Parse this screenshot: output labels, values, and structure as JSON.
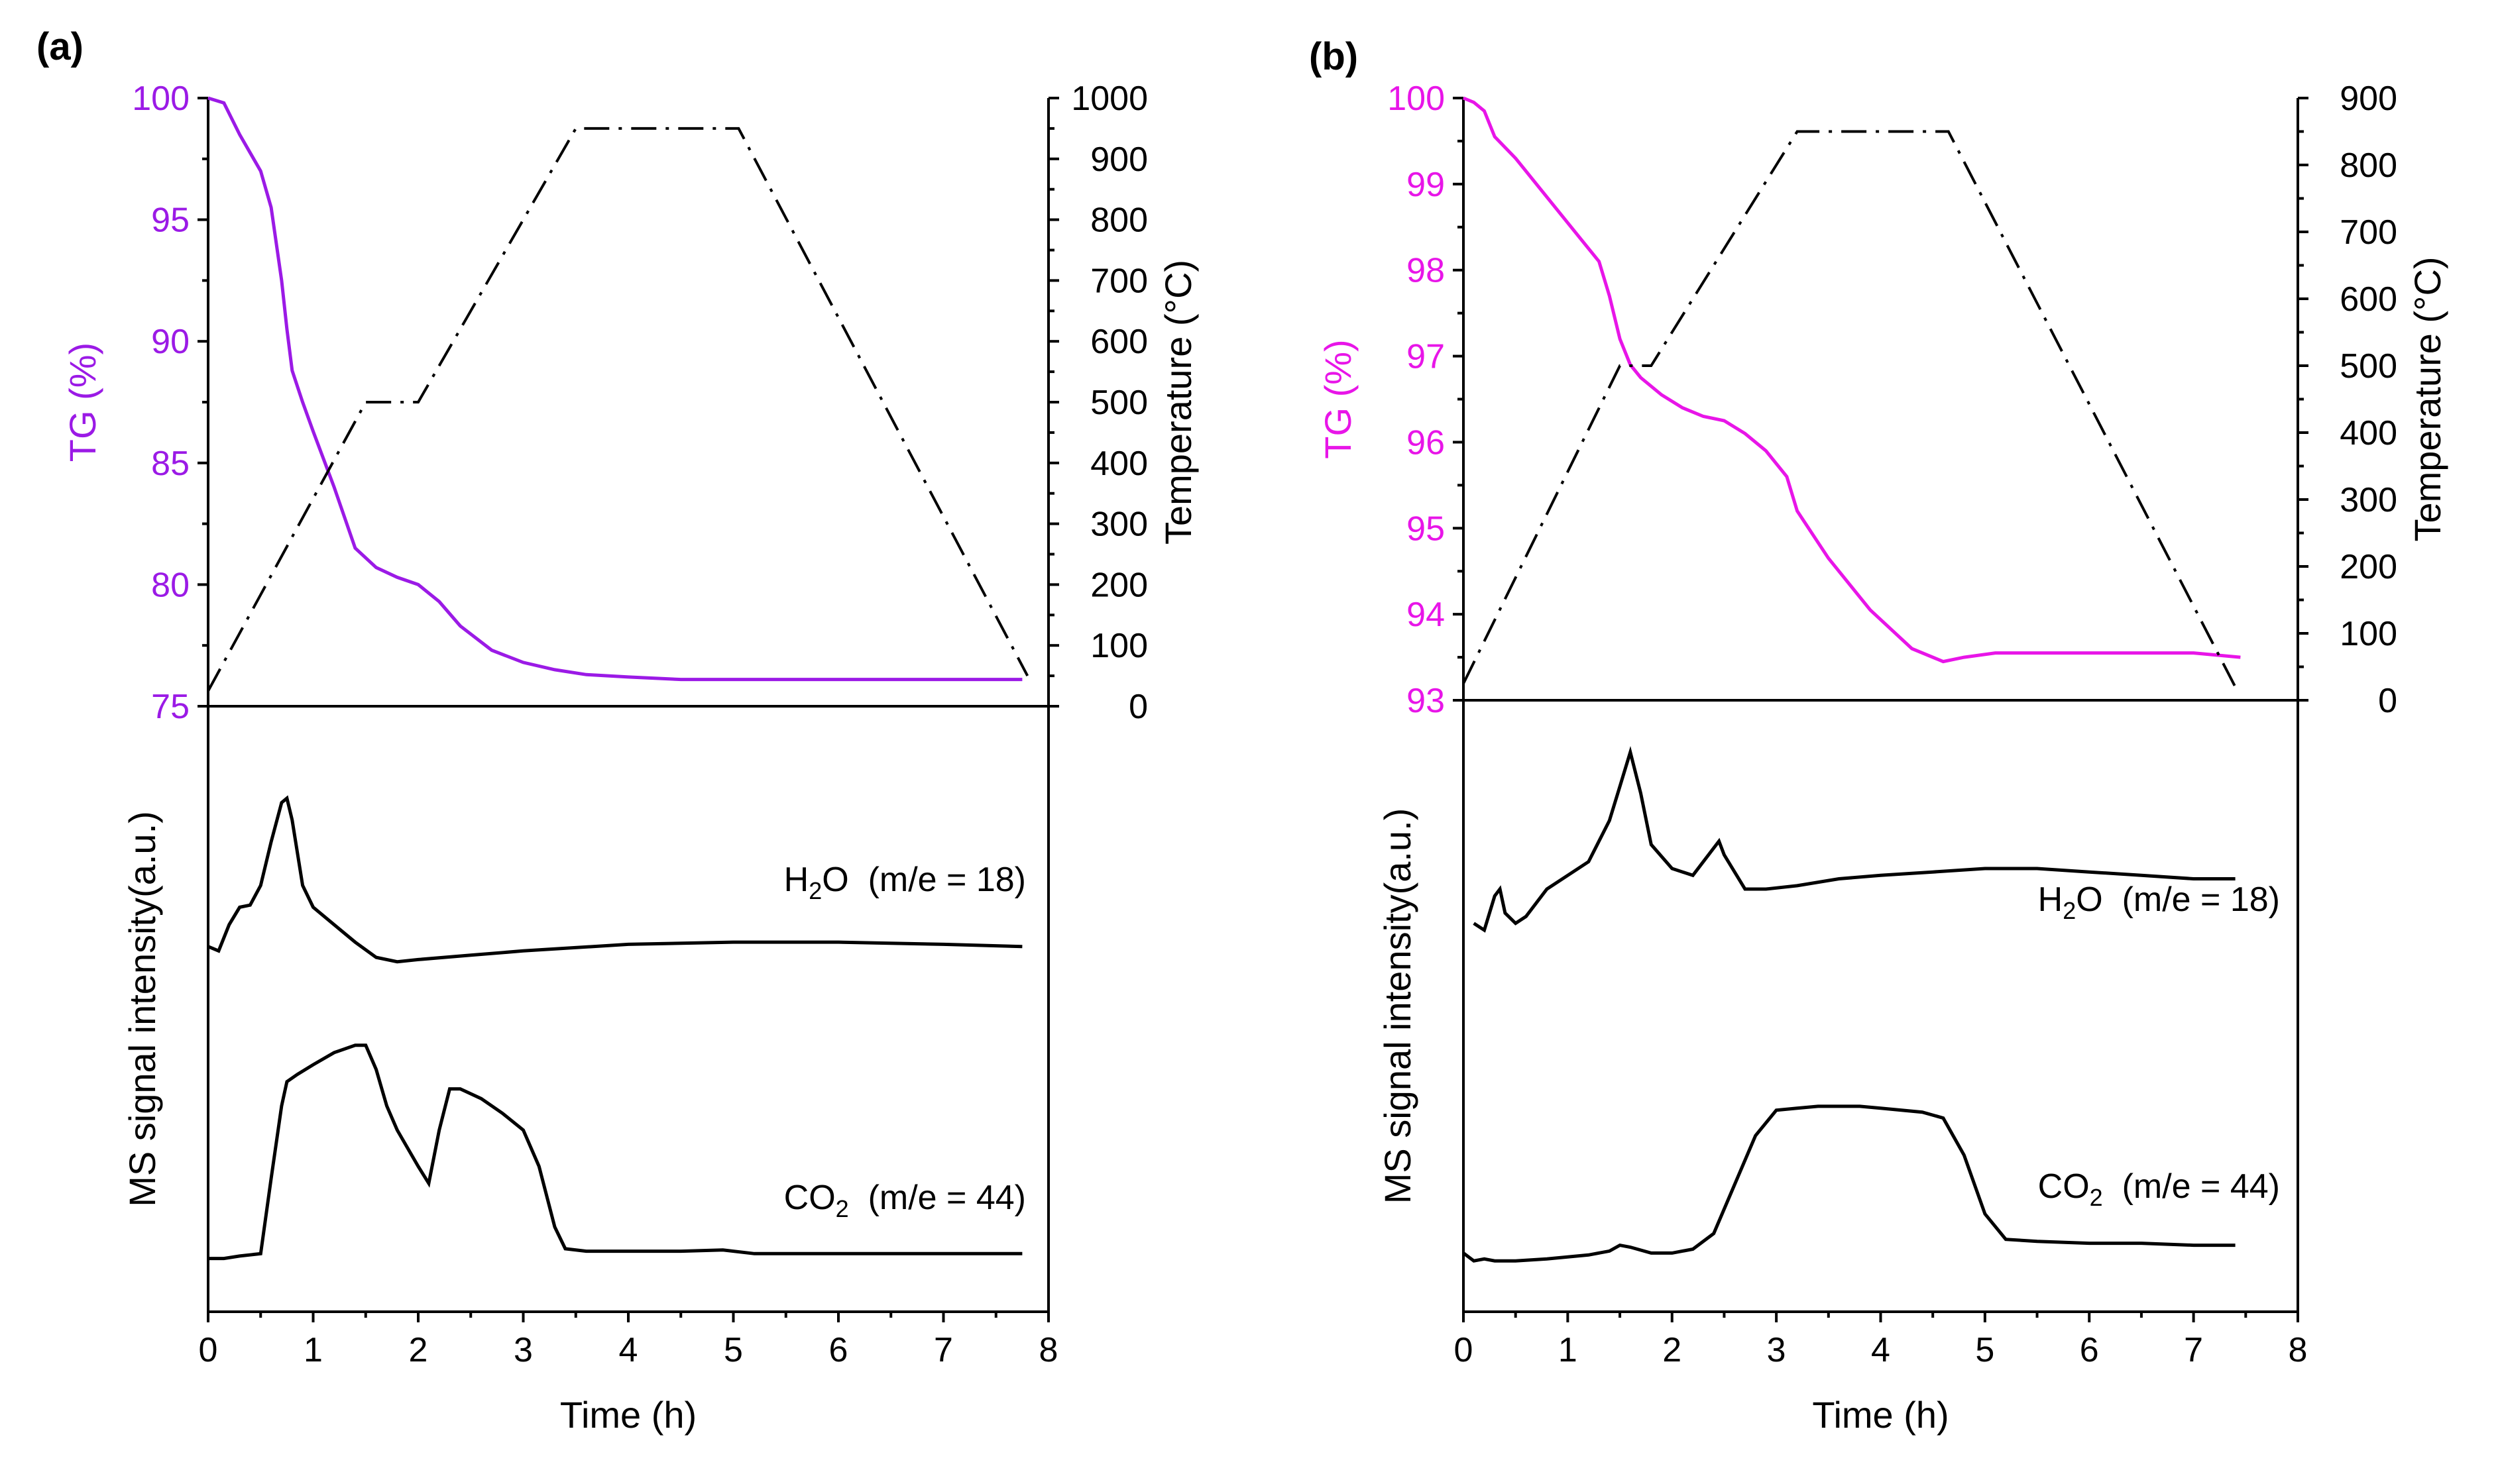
{
  "chart_data": [
    {
      "type": "line",
      "panel": "(a)",
      "xlabel": "Time (h)",
      "xlim": [
        0,
        8
      ],
      "xticks": [
        "0",
        "1",
        "2",
        "3",
        "4",
        "5",
        "6",
        "7",
        "8"
      ],
      "top": {
        "ylabel_left": "TG (%)",
        "ylabel_right": "Temperature (°C)",
        "ylim_left": [
          75,
          100
        ],
        "yticks_left": [
          "75",
          "80",
          "85",
          "90",
          "95",
          "100"
        ],
        "ylim_right": [
          0,
          1000
        ],
        "yticks_right": [
          "0",
          "100",
          "200",
          "300",
          "400",
          "500",
          "600",
          "700",
          "800",
          "900",
          "1000"
        ],
        "series": [
          {
            "name": "TG",
            "axis": "left",
            "color": "#9B1AE6",
            "x": [
              0,
              0.15,
              0.3,
              0.5,
              0.6,
              0.7,
              0.75,
              0.8,
              0.9,
              1.0,
              1.2,
              1.4,
              1.6,
              1.8,
              2.0,
              2.2,
              2.4,
              2.7,
              3.0,
              3.3,
              3.6,
              4.0,
              4.5,
              5.0,
              5.5,
              6.0,
              7.0,
              7.75
            ],
            "y": [
              100,
              99.8,
              98.5,
              97.0,
              95.5,
              92.5,
              90.5,
              88.8,
              87.5,
              86.3,
              84.0,
              81.5,
              80.7,
              80.3,
              80.0,
              79.3,
              78.3,
              77.3,
              76.8,
              76.5,
              76.3,
              76.2,
              76.1,
              76.1,
              76.1,
              76.1,
              76.1,
              76.1
            ]
          },
          {
            "name": "Temperature",
            "axis": "right",
            "color": "#000000",
            "x": [
              0,
              1.5,
              2.0,
              3.5,
              5.05,
              7.8
            ],
            "y": [
              25,
              500,
              500,
              950,
              950,
              50
            ]
          }
        ]
      },
      "bottom": {
        "ylabel": "MS signal intensity(a.u.)",
        "series": [
          {
            "name": "H2O",
            "label_main": "H",
            "label_sub": "2",
            "label_rest": "O  (m/e = 18)",
            "x": [
              0,
              0.1,
              0.2,
              0.3,
              0.4,
              0.5,
              0.6,
              0.7,
              0.75,
              0.8,
              0.9,
              1.0,
              1.2,
              1.4,
              1.6,
              1.8,
              2.0,
              2.5,
              3.0,
              4.0,
              5.0,
              6.0,
              7.0,
              7.75
            ],
            "y": [
              0.12,
              0.1,
              0.22,
              0.3,
              0.31,
              0.4,
              0.6,
              0.78,
              0.8,
              0.7,
              0.4,
              0.3,
              0.22,
              0.14,
              0.07,
              0.05,
              0.06,
              0.08,
              0.1,
              0.13,
              0.14,
              0.14,
              0.13,
              0.12
            ]
          },
          {
            "name": "CO2",
            "label_main": "CO",
            "label_sub": "2",
            "label_rest": "  (m/e = 44)",
            "x": [
              0,
              0.15,
              0.3,
              0.5,
              0.6,
              0.7,
              0.75,
              0.85,
              1.0,
              1.2,
              1.4,
              1.5,
              1.6,
              1.7,
              1.8,
              2.0,
              2.1,
              2.2,
              2.3,
              2.4,
              2.6,
              2.8,
              3.0,
              3.15,
              3.3,
              3.4,
              3.6,
              4.0,
              4.5,
              4.9,
              5.2,
              6.0,
              7.0,
              7.75
            ],
            "y": [
              0.02,
              0.02,
              0.03,
              0.04,
              0.35,
              0.65,
              0.75,
              0.78,
              0.82,
              0.87,
              0.9,
              0.9,
              0.8,
              0.65,
              0.55,
              0.4,
              0.33,
              0.55,
              0.72,
              0.72,
              0.68,
              0.62,
              0.55,
              0.4,
              0.15,
              0.06,
              0.05,
              0.05,
              0.05,
              0.055,
              0.04,
              0.04,
              0.04,
              0.04
            ]
          }
        ]
      }
    },
    {
      "type": "line",
      "panel": "(b)",
      "xlabel": "Time (h)",
      "xlim": [
        0,
        8
      ],
      "xticks": [
        "0",
        "1",
        "2",
        "3",
        "4",
        "5",
        "6",
        "7",
        "8"
      ],
      "top": {
        "ylabel_left": "TG (%)",
        "ylabel_right": "Temperature (°C)",
        "ylim_left": [
          93,
          100
        ],
        "yticks_left": [
          "93",
          "94",
          "95",
          "96",
          "97",
          "98",
          "99",
          "100"
        ],
        "ylim_right": [
          0,
          900
        ],
        "yticks_right": [
          "0",
          "100",
          "200",
          "300",
          "400",
          "500",
          "600",
          "700",
          "800",
          "900"
        ],
        "series": [
          {
            "name": "TG",
            "axis": "left",
            "color": "#E815E8",
            "x": [
              0,
              0.1,
              0.2,
              0.3,
              0.5,
              0.7,
              0.9,
              1.1,
              1.3,
              1.4,
              1.5,
              1.6,
              1.7,
              1.9,
              2.1,
              2.3,
              2.5,
              2.7,
              2.9,
              3.1,
              3.2,
              3.5,
              3.9,
              4.3,
              4.6,
              4.8,
              5.1,
              6.0,
              7.0,
              7.45
            ],
            "y": [
              100,
              99.95,
              99.85,
              99.55,
              99.3,
              99.0,
              98.7,
              98.4,
              98.1,
              97.7,
              97.2,
              96.9,
              96.75,
              96.55,
              96.4,
              96.3,
              96.25,
              96.1,
              95.9,
              95.6,
              95.2,
              94.65,
              94.05,
              93.6,
              93.45,
              93.5,
              93.55,
              93.55,
              93.55,
              93.5
            ]
          },
          {
            "name": "Temperature",
            "axis": "right",
            "color": "#000000",
            "x": [
              0,
              1.5,
              1.8,
              3.2,
              4.65,
              7.4
            ],
            "y": [
              25,
              500,
              500,
              850,
              850,
              20
            ]
          }
        ]
      },
      "bottom": {
        "ylabel": "MS signal intensity(a.u.)",
        "series": [
          {
            "name": "H2O",
            "label_main": "H",
            "label_sub": "2",
            "label_rest": "O  (m/e = 18)",
            "x": [
              0.1,
              0.2,
              0.3,
              0.35,
              0.4,
              0.5,
              0.6,
              0.8,
              1.0,
              1.2,
              1.4,
              1.5,
              1.6,
              1.7,
              1.8,
              2.0,
              2.2,
              2.4,
              2.45,
              2.5,
              2.7,
              2.9,
              3.2,
              3.6,
              4.0,
              4.5,
              5.0,
              5.5,
              6.0,
              6.5,
              7.0,
              7.4
            ],
            "y": [
              0.42,
              0.4,
              0.5,
              0.52,
              0.45,
              0.42,
              0.44,
              0.52,
              0.56,
              0.6,
              0.72,
              0.82,
              0.92,
              0.8,
              0.65,
              0.58,
              0.56,
              0.64,
              0.66,
              0.62,
              0.52,
              0.52,
              0.53,
              0.55,
              0.56,
              0.57,
              0.58,
              0.58,
              0.57,
              0.56,
              0.55,
              0.55
            ]
          },
          {
            "name": "CO2",
            "label_main": "CO",
            "label_sub": "2",
            "label_rest": "  (m/e = 44)",
            "x": [
              0,
              0.1,
              0.2,
              0.3,
              0.5,
              0.8,
              1.0,
              1.2,
              1.4,
              1.5,
              1.6,
              1.8,
              2.0,
              2.2,
              2.4,
              2.6,
              2.8,
              3.0,
              3.2,
              3.4,
              3.6,
              3.8,
              4.0,
              4.4,
              4.6,
              4.8,
              5.0,
              5.2,
              5.5,
              6.0,
              6.5,
              7.0,
              7.4
            ],
            "y": [
              0.05,
              0.01,
              0.02,
              0.01,
              0.01,
              0.02,
              0.03,
              0.04,
              0.06,
              0.09,
              0.08,
              0.05,
              0.05,
              0.07,
              0.15,
              0.4,
              0.65,
              0.78,
              0.79,
              0.8,
              0.8,
              0.8,
              0.79,
              0.77,
              0.74,
              0.55,
              0.25,
              0.12,
              0.11,
              0.1,
              0.1,
              0.09,
              0.09
            ]
          }
        ]
      }
    }
  ]
}
